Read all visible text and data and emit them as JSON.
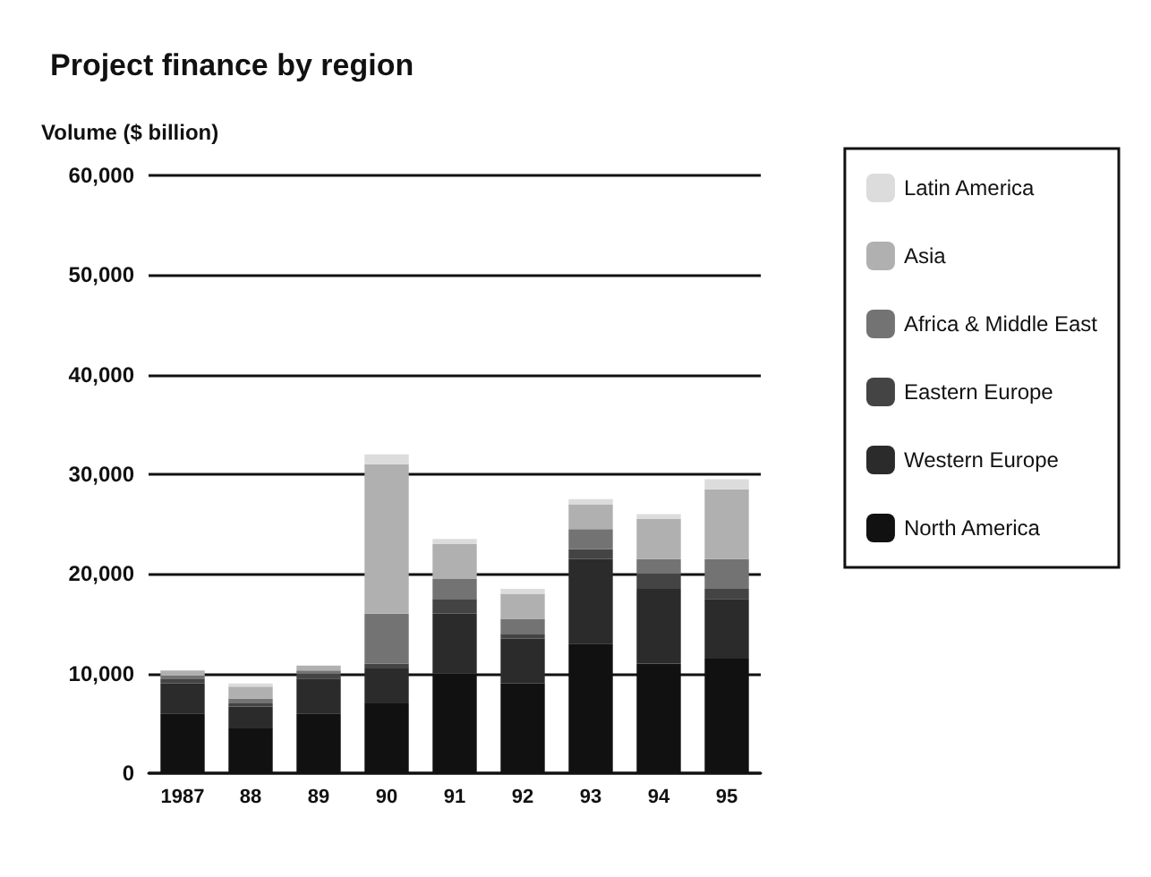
{
  "chart_data": {
    "type": "bar",
    "title": "Project finance by region",
    "ylabel": "Volume ($ billion)",
    "stacked": true,
    "categories": [
      "1987",
      "88",
      "89",
      "90",
      "91",
      "92",
      "93",
      "94",
      "95"
    ],
    "series": [
      {
        "name": "North America",
        "color": "#111111",
        "values": [
          6000,
          4500,
          6000,
          7000,
          10000,
          9000,
          13000,
          11000,
          11500
        ]
      },
      {
        "name": "Western Europe",
        "color": "#2b2b2b",
        "values": [
          3000,
          2200,
          3500,
          3500,
          6000,
          4500,
          8500,
          7500,
          6000
        ]
      },
      {
        "name": "Eastern Europe",
        "color": "#444444",
        "values": [
          500,
          300,
          500,
          500,
          1500,
          500,
          1000,
          1500,
          1000
        ]
      },
      {
        "name": "Africa & Middle East",
        "color": "#737373",
        "values": [
          300,
          500,
          300,
          5000,
          2000,
          1500,
          2000,
          1500,
          3000
        ]
      },
      {
        "name": "Asia",
        "color": "#b0b0b0",
        "values": [
          500,
          1200,
          500,
          15000,
          3500,
          2500,
          2500,
          4000,
          7000
        ]
      },
      {
        "name": "Latin America",
        "color": "#dcdcdc",
        "values": [
          null,
          300,
          null,
          1000,
          500,
          500,
          500,
          500,
          1000
        ]
      }
    ],
    "ylim": [
      0,
      60000
    ],
    "yticks": [
      0,
      {
        "value": 10000,
        "label": "10,000"
      },
      {
        "value": 20000,
        "label": "20,000"
      },
      {
        "value": 30000,
        "label": "30,000"
      },
      {
        "value": 40000,
        "label": "40,000"
      },
      {
        "value": 50000,
        "label": "50,000"
      },
      {
        "value": 60000,
        "label": "60,000"
      }
    ],
    "grid": "y",
    "legend": "right"
  }
}
